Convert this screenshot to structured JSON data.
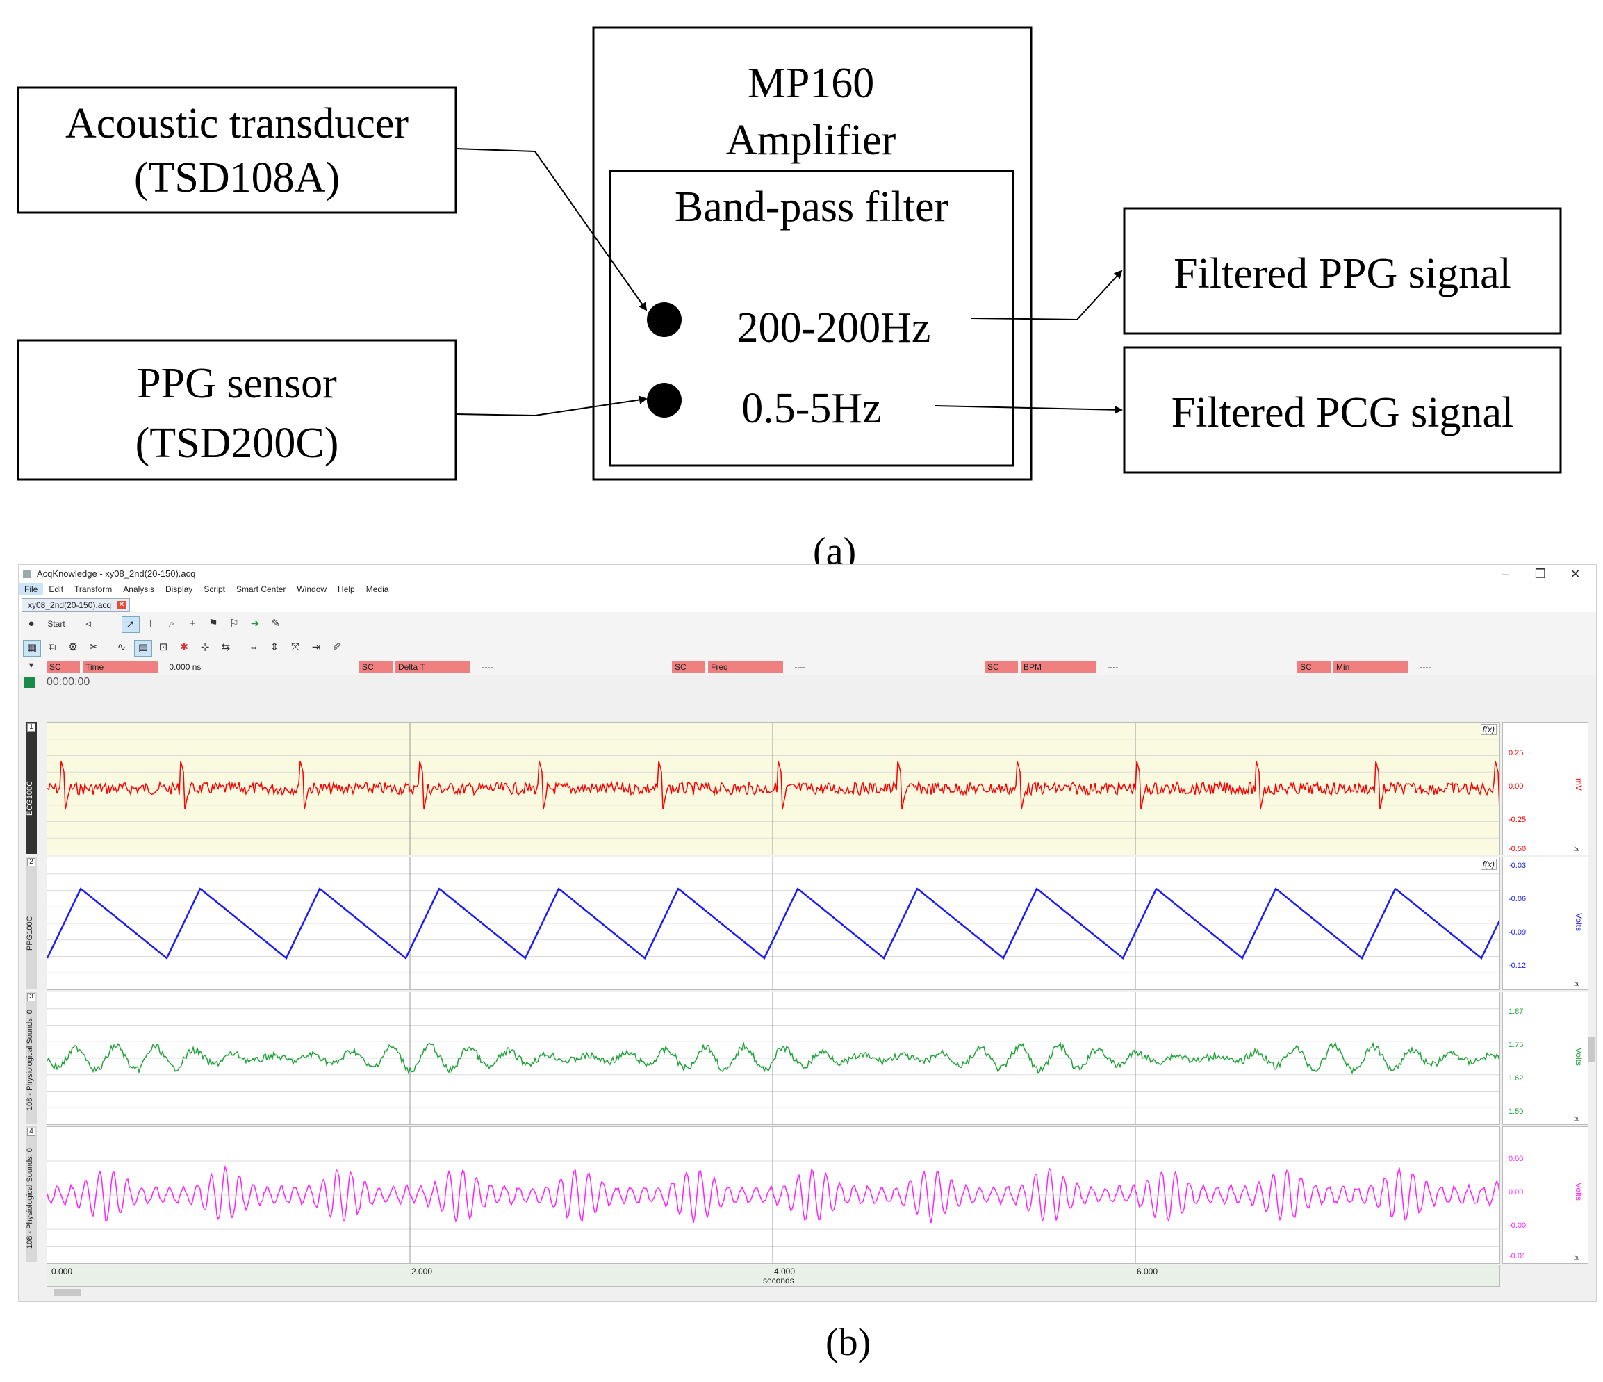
{
  "diagram": {
    "sensor1": {
      "line1": "Acoustic transducer",
      "line2": "(TSD108A)"
    },
    "sensor2": {
      "line1": "PPG sensor",
      "line2": "(TSD200C)"
    },
    "amplifier": {
      "line1": "MP160",
      "line2": "Amplifier"
    },
    "filter": {
      "title": "Band-pass filter",
      "band1": "200-200Hz",
      "band2": "0.5-5Hz"
    },
    "output1": "Filtered PPG signal",
    "output2": "Filtered PCG signal",
    "caption": "(a)"
  },
  "caption_b": "(b)",
  "app": {
    "title": "AcqKnowledge - xy08_2nd(20-150).acq",
    "window_controls": {
      "minimize": "–",
      "restore": "❐",
      "close": "✕"
    },
    "menu": [
      "File",
      "Edit",
      "Transform",
      "Analysis",
      "Display",
      "Script",
      "Smart Center",
      "Window",
      "Help",
      "Media"
    ],
    "tab": "xy08_2nd(20-150).acq",
    "start_label": "Start",
    "measurements": [
      {
        "sc": "SC",
        "fn": "Time",
        "value": "0.000 ns"
      },
      {
        "sc": "SC",
        "fn": "Delta T",
        "value": "----"
      },
      {
        "sc": "SC",
        "fn": "Freq",
        "value": "----"
      },
      {
        "sc": "SC",
        "fn": "BPM",
        "value": "----"
      },
      {
        "sc": "SC",
        "fn": "Min",
        "value": "----"
      }
    ],
    "time": "00:00:00",
    "channels": [
      {
        "num": "1",
        "label": "ECG100C",
        "unit": "mV",
        "ticks": [
          "0.25",
          "0.00",
          "-0.25",
          "-0.50"
        ],
        "color": "#ff0000",
        "bg": "#fafae0"
      },
      {
        "num": "2",
        "label": "PPG100C",
        "unit": "Volts",
        "ticks": [
          "-0.03",
          "-0.06",
          "-0.09",
          "-0.12"
        ],
        "color": "#1a1aff",
        "bg": "#ffffff"
      },
      {
        "num": "3",
        "label": "108 - Physiological Sounds, 0",
        "unit": "Volts",
        "ticks": [
          "1.87",
          "1.75",
          "1.62",
          "1.50"
        ],
        "color": "#22a33a",
        "bg": "#ffffff"
      },
      {
        "num": "4",
        "label": "108 - Physiological Sounds, 0",
        "unit": "Volts",
        "ticks": [
          "0.00",
          "0.00",
          "-0.00",
          "-0.01"
        ],
        "color": "#ff22ff",
        "bg": "#ffffff"
      }
    ],
    "xaxis": {
      "ticks": [
        "0.000",
        "2.000",
        "4.000",
        "6.000"
      ],
      "label": "seconds"
    }
  }
}
